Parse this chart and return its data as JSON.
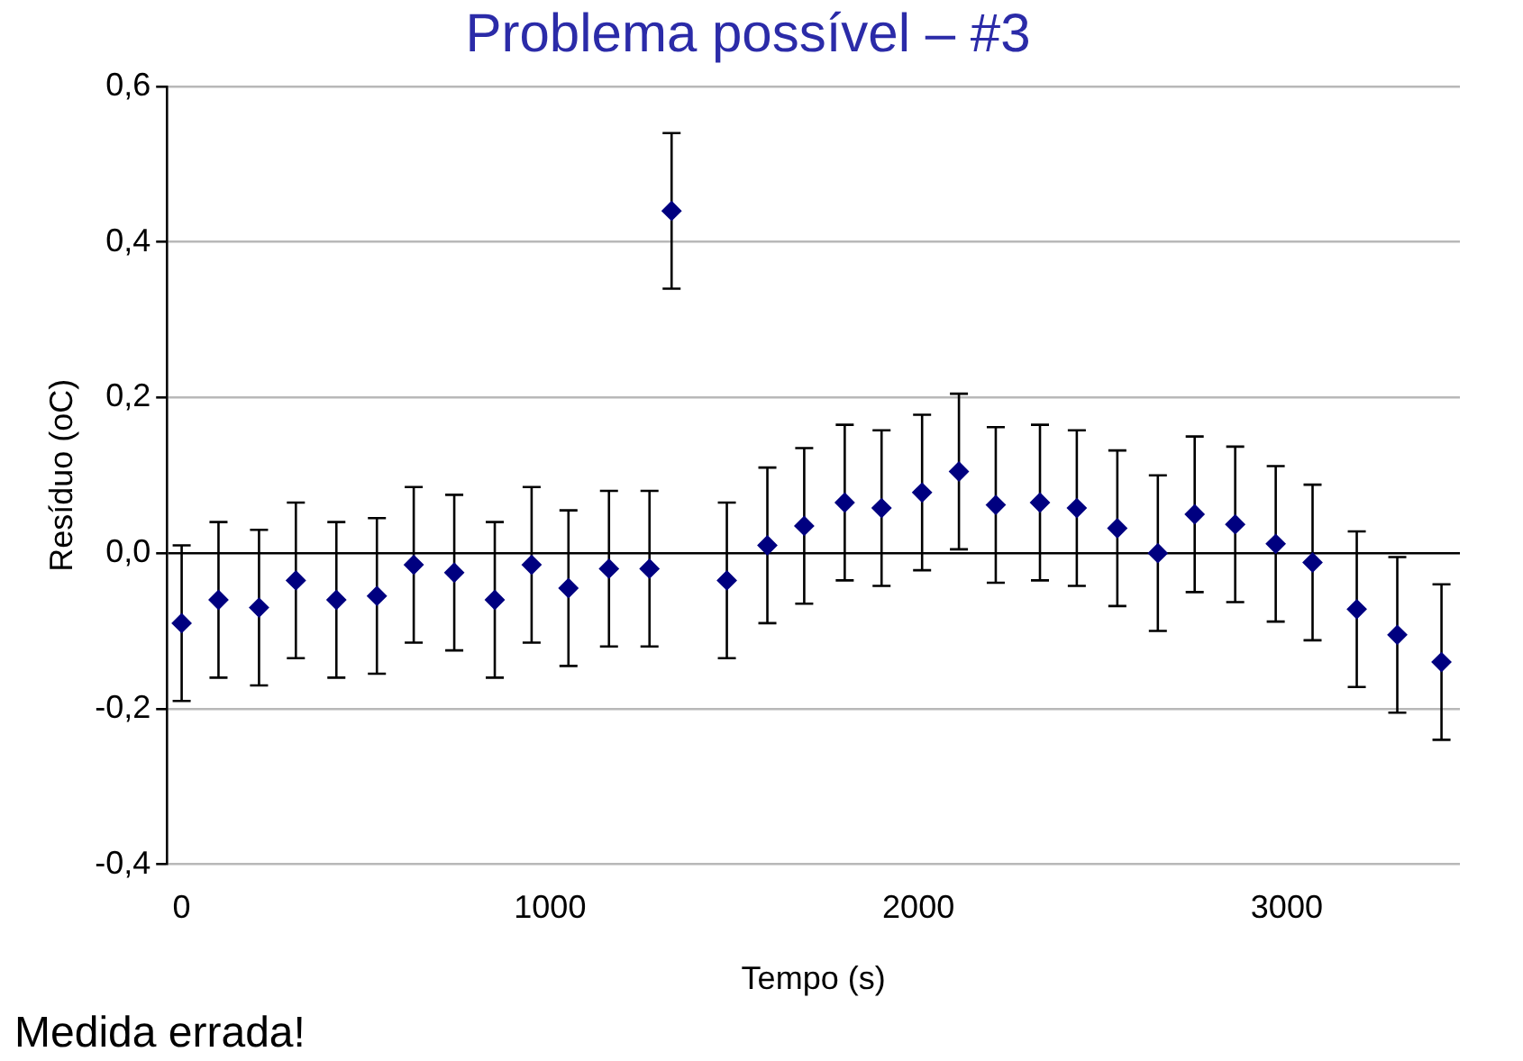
{
  "chart_data": {
    "type": "scatter",
    "title": "Problema possível – #3",
    "xlabel": "Tempo (s)",
    "ylabel": "Resíduo (oC)",
    "x": [
      0,
      100,
      210,
      310,
      420,
      530,
      630,
      740,
      850,
      950,
      1050,
      1160,
      1270,
      1330,
      1480,
      1590,
      1690,
      1800,
      1900,
      2010,
      2110,
      2210,
      2330,
      2430,
      2540,
      2650,
      2750,
      2860,
      2970,
      3070,
      3190,
      3300,
      3420
    ],
    "series": [
      {
        "color": "#000080",
        "values": [
          -0.09,
          -0.06,
          -0.07,
          -0.035,
          -0.06,
          -0.055,
          -0.015,
          -0.025,
          -0.06,
          -0.015,
          -0.045,
          -0.02,
          -0.02,
          0.44,
          -0.035,
          0.01,
          0.035,
          0.065,
          0.058,
          0.078,
          0.105,
          0.062,
          0.065,
          0.058,
          0.032,
          0.0,
          0.05,
          0.037,
          0.012,
          -0.012,
          -0.072,
          -0.105,
          -0.14
        ],
        "errors": [
          0.1,
          0.1,
          0.1,
          0.1,
          0.1,
          0.1,
          0.1,
          0.1,
          0.1,
          0.1,
          0.1,
          0.1,
          0.1,
          0.1,
          0.1,
          0.1,
          0.1,
          0.1,
          0.1,
          0.1,
          0.1,
          0.1,
          0.1,
          0.1,
          0.1,
          0.1,
          0.1,
          0.1,
          0.1,
          0.1,
          0.1,
          0.1,
          0.1
        ]
      }
    ],
    "xlim": [
      -40,
      3470
    ],
    "xticks": [
      0,
      1000,
      2000,
      3000
    ],
    "ylim": [
      -0.4,
      0.6
    ],
    "yticks": [
      {
        "value": -0.4,
        "label": "-0,4"
      },
      {
        "value": -0.2,
        "label": "-0,2"
      },
      {
        "value": 0,
        "label": "0,0"
      },
      {
        "value": 0.2,
        "label": "0,2"
      },
      {
        "value": 0.4,
        "label": "0,4"
      },
      {
        "value": 0.6,
        "label": "0,6"
      }
    ],
    "grid": "y",
    "legend": false,
    "marker": "diamond",
    "annotations": [
      "Medida errada!"
    ]
  }
}
